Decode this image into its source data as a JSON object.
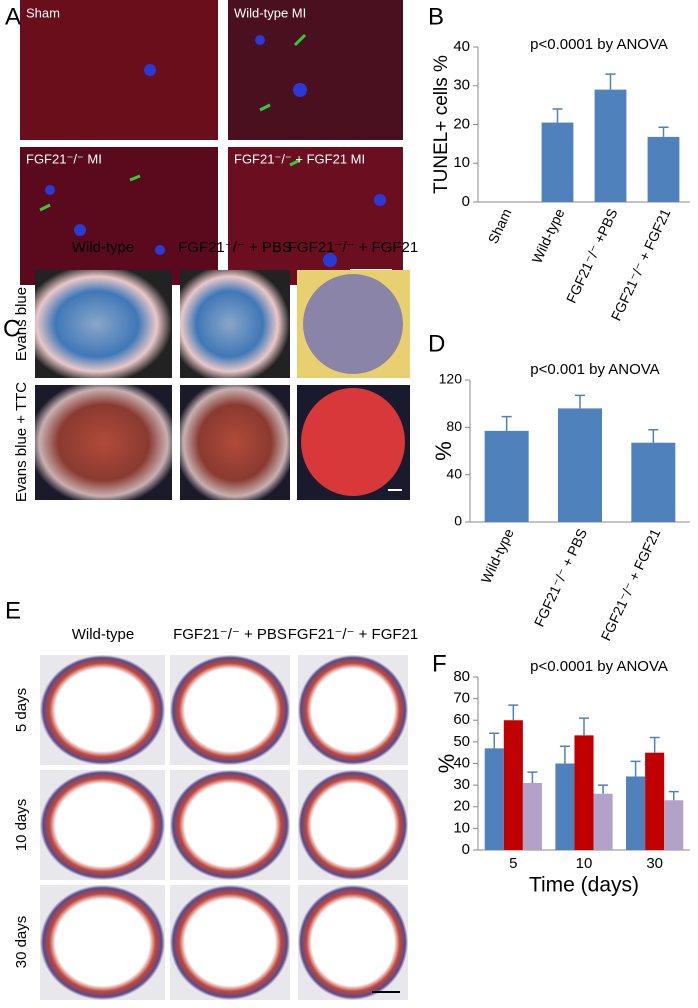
{
  "panels": {
    "labels": [
      "A",
      "B",
      "C",
      "D",
      "E",
      "F"
    ],
    "a_images": [
      "Sham",
      "Wild-type MI",
      "FGF21⁻/⁻ MI",
      "FGF21⁻/⁻ + FGF21 MI"
    ],
    "c_columns": [
      "Wild-type",
      "FGF21⁻/⁻ + PBS",
      "FGF21⁻/⁻ + FGF21"
    ],
    "c_rows": [
      "Evans blue",
      "Evans blue + TTC"
    ],
    "e_columns": [
      "Wild-type",
      "FGF21⁻/⁻ + PBS",
      "FGF21⁻/⁻ + FGF21"
    ],
    "e_rows": [
      "5 days",
      "10 days",
      "30 days"
    ]
  },
  "chart_data": [
    {
      "type": "bar",
      "title": "p<0.0001 by ANOVA",
      "y_label": "TUNEL+ cells %",
      "categories": [
        "Sham",
        "Wild-type",
        "FGF21⁻/⁻ +PBS",
        "FGF21⁻/⁻ + FGF21"
      ],
      "values": [
        0,
        20.5,
        29,
        16.8
      ],
      "errors": [
        0,
        3.5,
        4,
        2.5
      ],
      "color": "#4f81bd",
      "ylim": [
        0,
        40
      ],
      "yticks": [
        0,
        10,
        20,
        30,
        40
      ]
    },
    {
      "type": "bar",
      "title": "p<0.001 by ANOVA",
      "y_label": "%",
      "categories": [
        "Wild-type",
        "FGF21⁻/⁻ + PBS",
        "FGF21⁻/⁻ + FGF21"
      ],
      "values": [
        77,
        96,
        67
      ],
      "errors": [
        12,
        11,
        11
      ],
      "color": "#4f81bd",
      "ylim": [
        0,
        120
      ],
      "yticks": [
        0,
        40,
        80,
        120
      ]
    },
    {
      "type": "grouped-bar",
      "title": "p<0.0001 by ANOVA",
      "y_label": "%",
      "x_label": "Time (days)",
      "categories": [
        "5",
        "10",
        "30"
      ],
      "series": [
        {
          "color": "#4f81bd",
          "values": [
            47,
            40,
            34
          ],
          "errors": [
            7,
            8,
            7
          ]
        },
        {
          "color": "#c00000",
          "values": [
            60,
            53,
            45
          ],
          "errors": [
            7,
            8,
            7
          ]
        },
        {
          "color": "#b3a2c7",
          "values": [
            31,
            26,
            23
          ],
          "errors": [
            5,
            4,
            4
          ]
        }
      ],
      "ylim": [
        0,
        80
      ],
      "yticks": [
        0,
        10,
        20,
        30,
        40,
        50,
        60,
        70,
        80
      ]
    }
  ]
}
